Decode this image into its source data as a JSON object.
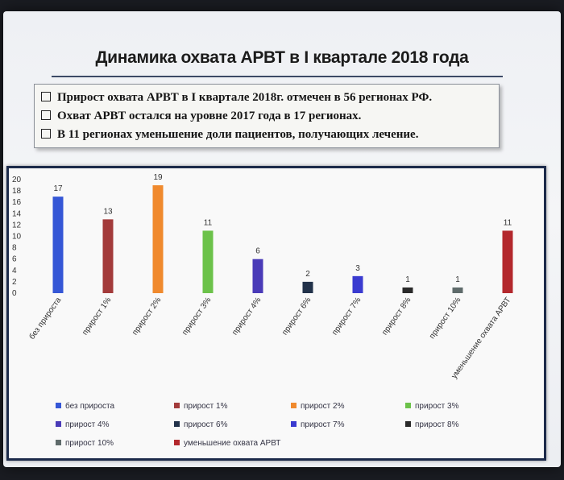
{
  "slide": {
    "title": "Динамика охвата АРВТ в I квартале 2018 года",
    "bullets": [
      "Прирост охвата АРВТ в I квартале 2018г. отмечен в 56 регионах РФ.",
      "Охват АРВТ остался на уровне 2017 года в 17 регионах.",
      "В 11 регионах уменьшение доли пациентов, получающих лечение."
    ]
  },
  "chart_data": {
    "type": "bar",
    "title": "",
    "xlabel": "",
    "ylabel": "",
    "ylim": [
      0,
      20
    ],
    "yticks": [
      "0",
      "2",
      "4",
      "6",
      "8",
      "10",
      "12",
      "14",
      "16",
      "18",
      "20"
    ],
    "categories": [
      "без прироста",
      "прирост 1%",
      "прирост 2%",
      "прирост 3%",
      "прирост 4%",
      "прирост 6%",
      "прирост 7%",
      "прирост 8%",
      "прирост 10%",
      "уменьшение охвата АРВТ"
    ],
    "values": [
      17,
      13,
      19,
      11,
      6,
      2,
      3,
      1,
      1,
      11
    ],
    "data_labels": [
      "17",
      "13",
      "19",
      "11",
      "6",
      "2",
      "3",
      "1",
      "1",
      "11"
    ],
    "colors": [
      "#3557d6",
      "#a33b3b",
      "#f08a2e",
      "#6cc24a",
      "#4a3bb8",
      "#22324a",
      "#3a3bd0",
      "#2a2a2a",
      "#5f6b6b",
      "#b3282d"
    ],
    "legend": {
      "placement": "bottom",
      "entries": [
        "без прироста",
        "прирост 1%",
        "прирост 2%",
        "прирост 3%",
        "прирост 4%",
        "прирост 6%",
        "прирост 7%",
        "прирост 8%",
        "прирост 10%",
        "уменьшение охвата АРВТ"
      ]
    },
    "grid": false
  }
}
